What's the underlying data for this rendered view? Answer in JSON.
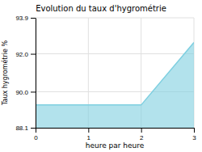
{
  "chart_data": {
    "type": "area",
    "title": "Evolution du taux d'hygrométrie",
    "xlabel": "heure par heure",
    "ylabel": "Taux hygrométrie %",
    "x": [
      0,
      2,
      3
    ],
    "values": [
      89.3,
      89.3,
      92.6
    ],
    "color": "#7ecfe0",
    "xlim": [
      0,
      3
    ],
    "ylim": [
      88.1,
      93.9
    ],
    "xticks": [
      0,
      1,
      2,
      3
    ],
    "yticks": [
      88.1,
      {
        "value": 90.0,
        "label": "90.0"
      },
      {
        "value": 92.0,
        "label": "92.0"
      },
      93.9
    ],
    "grid": true
  }
}
